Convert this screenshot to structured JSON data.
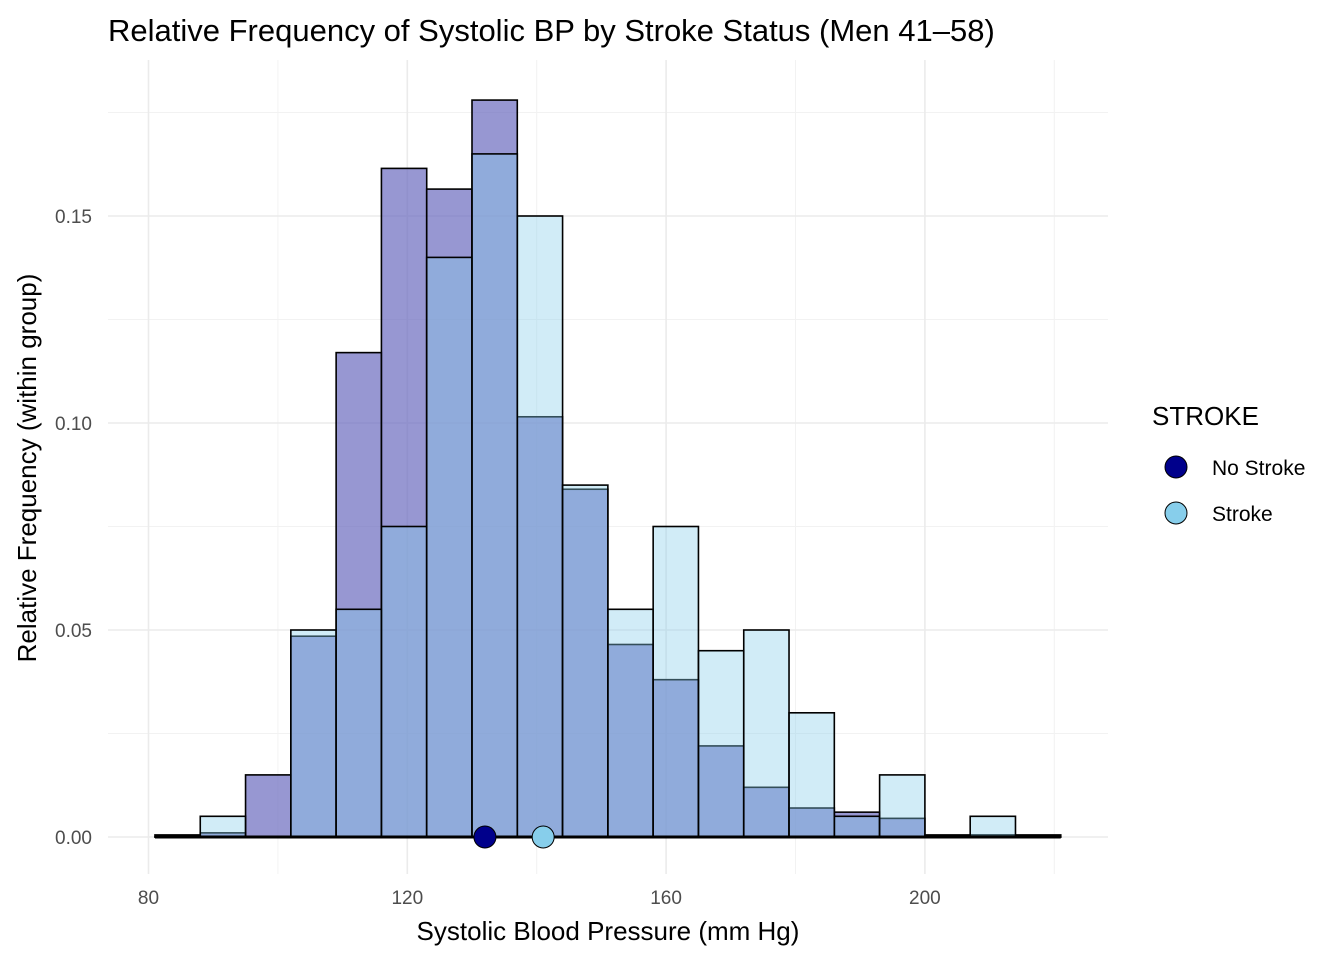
{
  "chart_data": {
    "type": "bar",
    "subtype": "overlaid-histogram",
    "title": "Relative Frequency of Systolic BP by Stroke Status (Men 41–58)",
    "xlabel": "Systolic Blood Pressure (mm Hg)",
    "ylabel": "Relative Frequency (within group)",
    "xlim": [
      80,
      222
    ],
    "ylim": [
      0,
      0.18
    ],
    "x_ticks": [
      80,
      120,
      160,
      200
    ],
    "x_tick_labels": [
      "80",
      "120",
      "160",
      "200"
    ],
    "y_ticks": [
      0,
      0.05,
      0.1,
      0.15
    ],
    "y_tick_labels": [
      "0.00",
      "0.05",
      "0.10",
      "0.15"
    ],
    "grid": true,
    "legend": {
      "title": "STROKE",
      "position": "right",
      "entries": [
        {
          "label": "No Stroke",
          "color": "#00008B"
        },
        {
          "label": "Stroke",
          "color": "#87CEEB"
        }
      ]
    },
    "bin_width": 7,
    "bin_edges": [
      81,
      88,
      95,
      102,
      109,
      116,
      123,
      130,
      137,
      144,
      151,
      158,
      165,
      172,
      179,
      186,
      193,
      200,
      207,
      214,
      221
    ],
    "series": [
      {
        "name": "No Stroke",
        "fill": "#6B6BBF",
        "values": [
          0.0005,
          0.001,
          0.015,
          0.0485,
          0.117,
          0.1615,
          0.1565,
          0.178,
          0.1015,
          0.084,
          0.0465,
          0.038,
          0.022,
          0.012,
          0.007,
          0.006,
          0.0045,
          0.0005,
          0.0005,
          0.0005
        ],
        "mean": 132
      },
      {
        "name": "Stroke",
        "fill": "#87CEEB",
        "values": [
          0.0,
          0.005,
          0.0,
          0.05,
          0.055,
          0.075,
          0.14,
          0.165,
          0.15,
          0.085,
          0.055,
          0.075,
          0.045,
          0.05,
          0.03,
          0.005,
          0.015,
          0.0,
          0.005,
          0.0
        ],
        "mean": 141
      }
    ]
  }
}
